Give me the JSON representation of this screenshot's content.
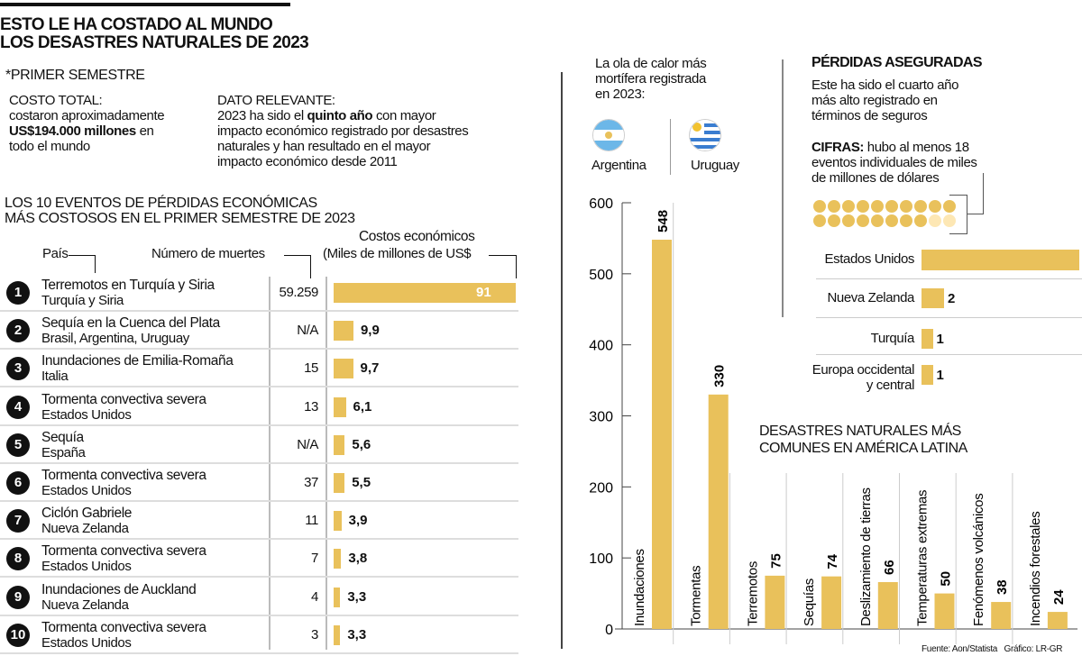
{
  "header": {
    "title_line1": "ESTO LE HA COSTADO AL MUNDO",
    "title_line2": "LOS DESASTRES NATURALES DE 2023",
    "subtitle": "*PRIMER SEMESTRE"
  },
  "costo_total": {
    "label": "COSTO TOTAL:",
    "text1": "costaron aproximadamente",
    "bold": "US$194.000 millones",
    "text2": " en",
    "text3": "todo el mundo"
  },
  "dato_relevante": {
    "label": "DATO RELEVANTE:",
    "pre": "2023 ha sido el ",
    "bold": "quinto año",
    "post": " con mayor",
    "l2": "impacto económico registrado por desastres",
    "l3": "naturales y han resultado en el mayor",
    "l4": "impacto económico desde 2011"
  },
  "top10": {
    "title1": "LOS 10 EVENTOS DE PÉRDIDAS ECONÓMICAS",
    "title2": "MÁS COSTOSOS EN EL PRIMER SEMESTRE DE 2023",
    "col_country": "País",
    "col_deaths": "Número de muertes",
    "col_cost1": "Costos económicos",
    "col_cost2": "(Miles de millones de US$",
    "rows": [
      {
        "rank": "1",
        "event": "Terremotos en Turquía y Siria",
        "country": "Turquía y Siria",
        "deaths": "59.259",
        "cost": 91,
        "cost_label": "91"
      },
      {
        "rank": "2",
        "event": "Sequía en la Cuenca del Plata",
        "country": "Brasil, Argentina, Uruguay",
        "deaths": "N/A",
        "cost": 9.9,
        "cost_label": "9,9"
      },
      {
        "rank": "3",
        "event": "Inundaciones de Emilia-Romaña",
        "country": "Italia",
        "deaths": "15",
        "cost": 9.7,
        "cost_label": "9,7"
      },
      {
        "rank": "4",
        "event": "Tormenta convectiva severa",
        "country": "Estados Unidos",
        "deaths": "13",
        "cost": 6.1,
        "cost_label": "6,1"
      },
      {
        "rank": "5",
        "event": "Sequía",
        "country": "España",
        "deaths": "N/A",
        "cost": 5.6,
        "cost_label": "5,6"
      },
      {
        "rank": "6",
        "event": "Tormenta convectiva severa",
        "country": "Estados Unidos",
        "deaths": "37",
        "cost": 5.5,
        "cost_label": "5,5"
      },
      {
        "rank": "7",
        "event": "Ciclón Gabriele",
        "country": "Nueva Zelanda",
        "deaths": "11",
        "cost": 3.9,
        "cost_label": "3,9"
      },
      {
        "rank": "8",
        "event": "Tormenta convectiva severa",
        "country": "Estados Unidos",
        "deaths": "7",
        "cost": 3.8,
        "cost_label": "3,8"
      },
      {
        "rank": "9",
        "event": "Inundaciones de Auckland",
        "country": "Nueva Zelanda",
        "deaths": "4",
        "cost": 3.3,
        "cost_label": "3,3"
      },
      {
        "rank": "10",
        "event": "Tormenta convectiva severa",
        "country": "Estados Unidos",
        "deaths": "3",
        "cost": 3.3,
        "cost_label": "3,3"
      }
    ]
  },
  "heatwave": {
    "l1": "La ola de calor más",
    "l2": "mortífera registrada",
    "l3": "en 2023:",
    "countries": [
      "Argentina",
      "Uruguay"
    ]
  },
  "insured": {
    "title": "PÉRDIDAS ASEGURADAS",
    "l1": "Este ha sido el cuarto año",
    "l2": "más alto registrado en",
    "l3": "términos de seguros",
    "cifras_bold": "CIFRAS:",
    "cifras_l1": " hubo al menos 18",
    "cifras_l2": "eventos individuales de miles",
    "cifras_l3": "de millones de dólares",
    "dots_total": 20,
    "dots_filled": 18,
    "bars": [
      {
        "name": "Estados Unidos",
        "value": 14,
        "label": ""
      },
      {
        "name": "Nueva Zelanda",
        "value": 2,
        "label": "2"
      },
      {
        "name": "Turquía",
        "value": 1,
        "label": "1"
      },
      {
        "name": "Europa occidental",
        "name2": "y central",
        "value": 1,
        "label": "1"
      }
    ]
  },
  "colors": {
    "bar": "#e9c15b",
    "dot_light": "#fde7b4",
    "text": "#111111"
  },
  "chart_data": {
    "type": "bar",
    "title": "DESASTRES NATURALES MÁS COMUNES EN AMÉRICA LATINA",
    "title1": "DESASTRES NATURALES MÁS",
    "title2": "COMUNES EN AMÉRICA LATINA",
    "categories": [
      "Inundaciones",
      "Tormentas",
      "Terremotos",
      "Sequías",
      "Deslizamiento de tierras",
      "Temperaturas extremas",
      "Fenómenos volcánicos",
      "Incendios forestales"
    ],
    "values": [
      548,
      330,
      75,
      74,
      66,
      50,
      38,
      24
    ],
    "ylim": [
      0,
      600
    ],
    "yticks": [
      "0",
      "100",
      "200",
      "300",
      "400",
      "500",
      "600"
    ],
    "grid": false
  },
  "footer": {
    "source": "Fuente: Aon/Statista",
    "credit": "Gráfico: LR-GR"
  }
}
